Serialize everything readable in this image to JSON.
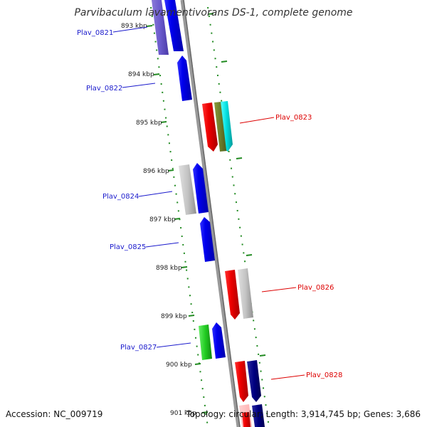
{
  "title": "Parvibaculum lavamentivorans DS-1, complete genome",
  "accession": "Accession: NC_009719",
  "summary": "Topology: circular; Length: 3,914,745 bp; Genes: 3,686",
  "colors": {
    "backbone": "#888888",
    "tick": "#228B22",
    "forward_label": "#1a1acc",
    "reverse_label": "#dd0000"
  },
  "ticks": [
    {
      "label": "893 kbp"
    },
    {
      "label": "894 kbp"
    },
    {
      "label": "895 kbp"
    },
    {
      "label": "896 kbp"
    },
    {
      "label": "897 kbp"
    },
    {
      "label": "898 kbp"
    },
    {
      "label": "899 kbp"
    },
    {
      "label": "900 kbp"
    },
    {
      "label": "901 kbp"
    }
  ],
  "gene_labels": [
    {
      "name": "Plav_0821",
      "strand": "forward"
    },
    {
      "name": "Plav_0822",
      "strand": "forward"
    },
    {
      "name": "Plav_0823",
      "strand": "reverse"
    },
    {
      "name": "Plav_0824",
      "strand": "forward"
    },
    {
      "name": "Plav_0825",
      "strand": "forward"
    },
    {
      "name": "Plav_0826",
      "strand": "reverse"
    },
    {
      "name": "Plav_0827",
      "strand": "forward"
    },
    {
      "name": "Plav_0828",
      "strand": "reverse"
    }
  ]
}
